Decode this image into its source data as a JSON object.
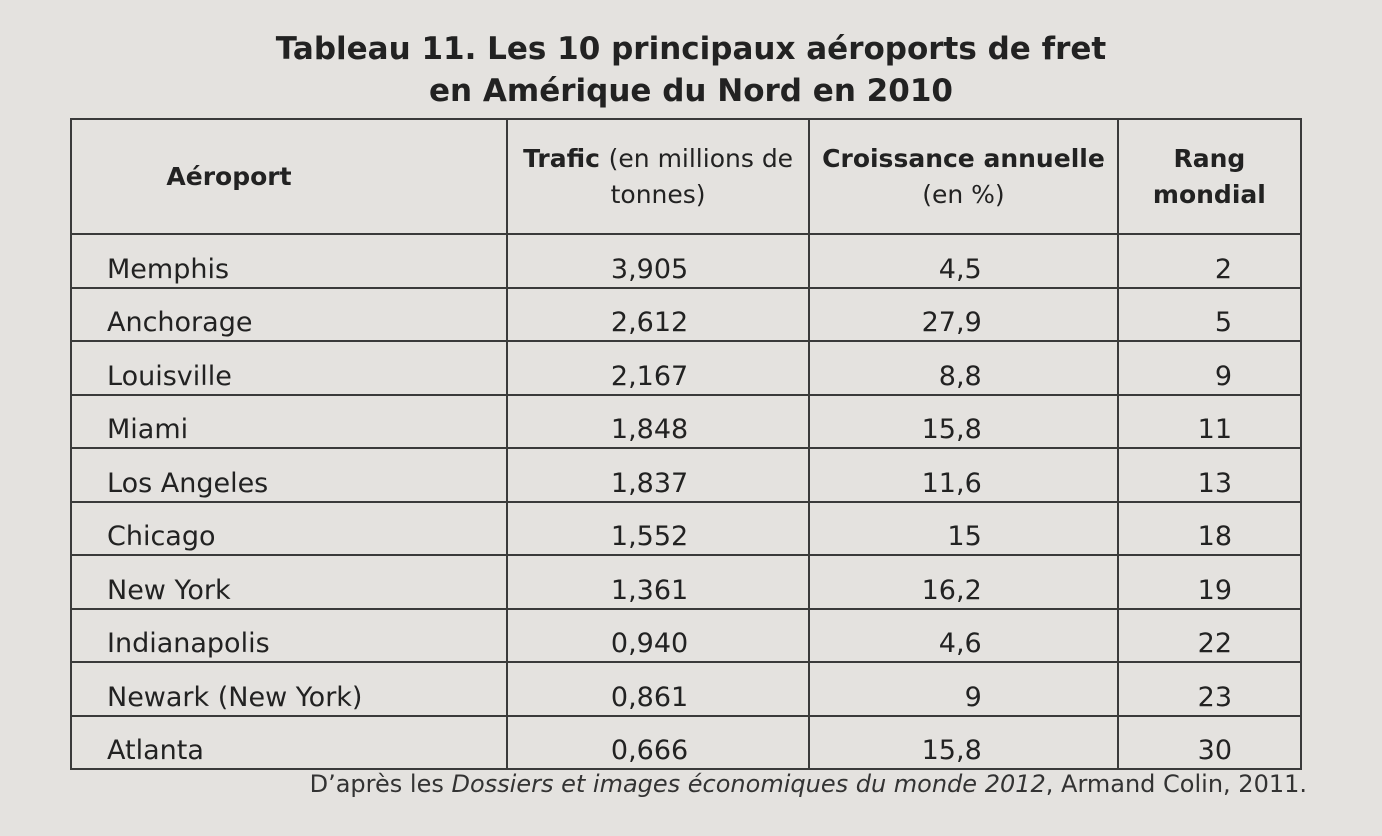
{
  "title": [
    "Tableau 11. Les 10 principaux aéroports de fret",
    "en Amérique du Nord en 2010"
  ],
  "table": {
    "header": [
      {
        "bold": "Aéroport"
      },
      {
        "bold": "Trafic",
        "rest": "(en millions de tonnes)"
      },
      {
        "bold": "Croissance annuelle",
        "rest": "(en %)"
      },
      {
        "bold": "Rang mondial"
      }
    ],
    "rows": [
      [
        "Memphis",
        "3,905",
        "4,5",
        "2"
      ],
      [
        "Anchorage",
        "2,612",
        "27,9",
        "5"
      ],
      [
        "Louisville",
        "2,167",
        "8,8",
        "9"
      ],
      [
        "Miami",
        "1,848",
        "15,8",
        "11"
      ],
      [
        "Los Angeles",
        "1,837",
        "11,6",
        "13"
      ],
      [
        "Chicago",
        "1,552",
        "15",
        "18"
      ],
      [
        "New York",
        "1,361",
        "16,2",
        "19"
      ],
      [
        "Indianapolis",
        "0,940",
        "4,6",
        "22"
      ],
      [
        "Newark (New York)",
        "0,861",
        "9",
        "23"
      ],
      [
        "Atlanta",
        "0,666",
        "15,8",
        "30"
      ]
    ]
  },
  "source": {
    "before": "D’après les",
    "italic": "Dossiers et images économiques du monde 2012",
    "after": ", Armand Colin, 2011."
  }
}
